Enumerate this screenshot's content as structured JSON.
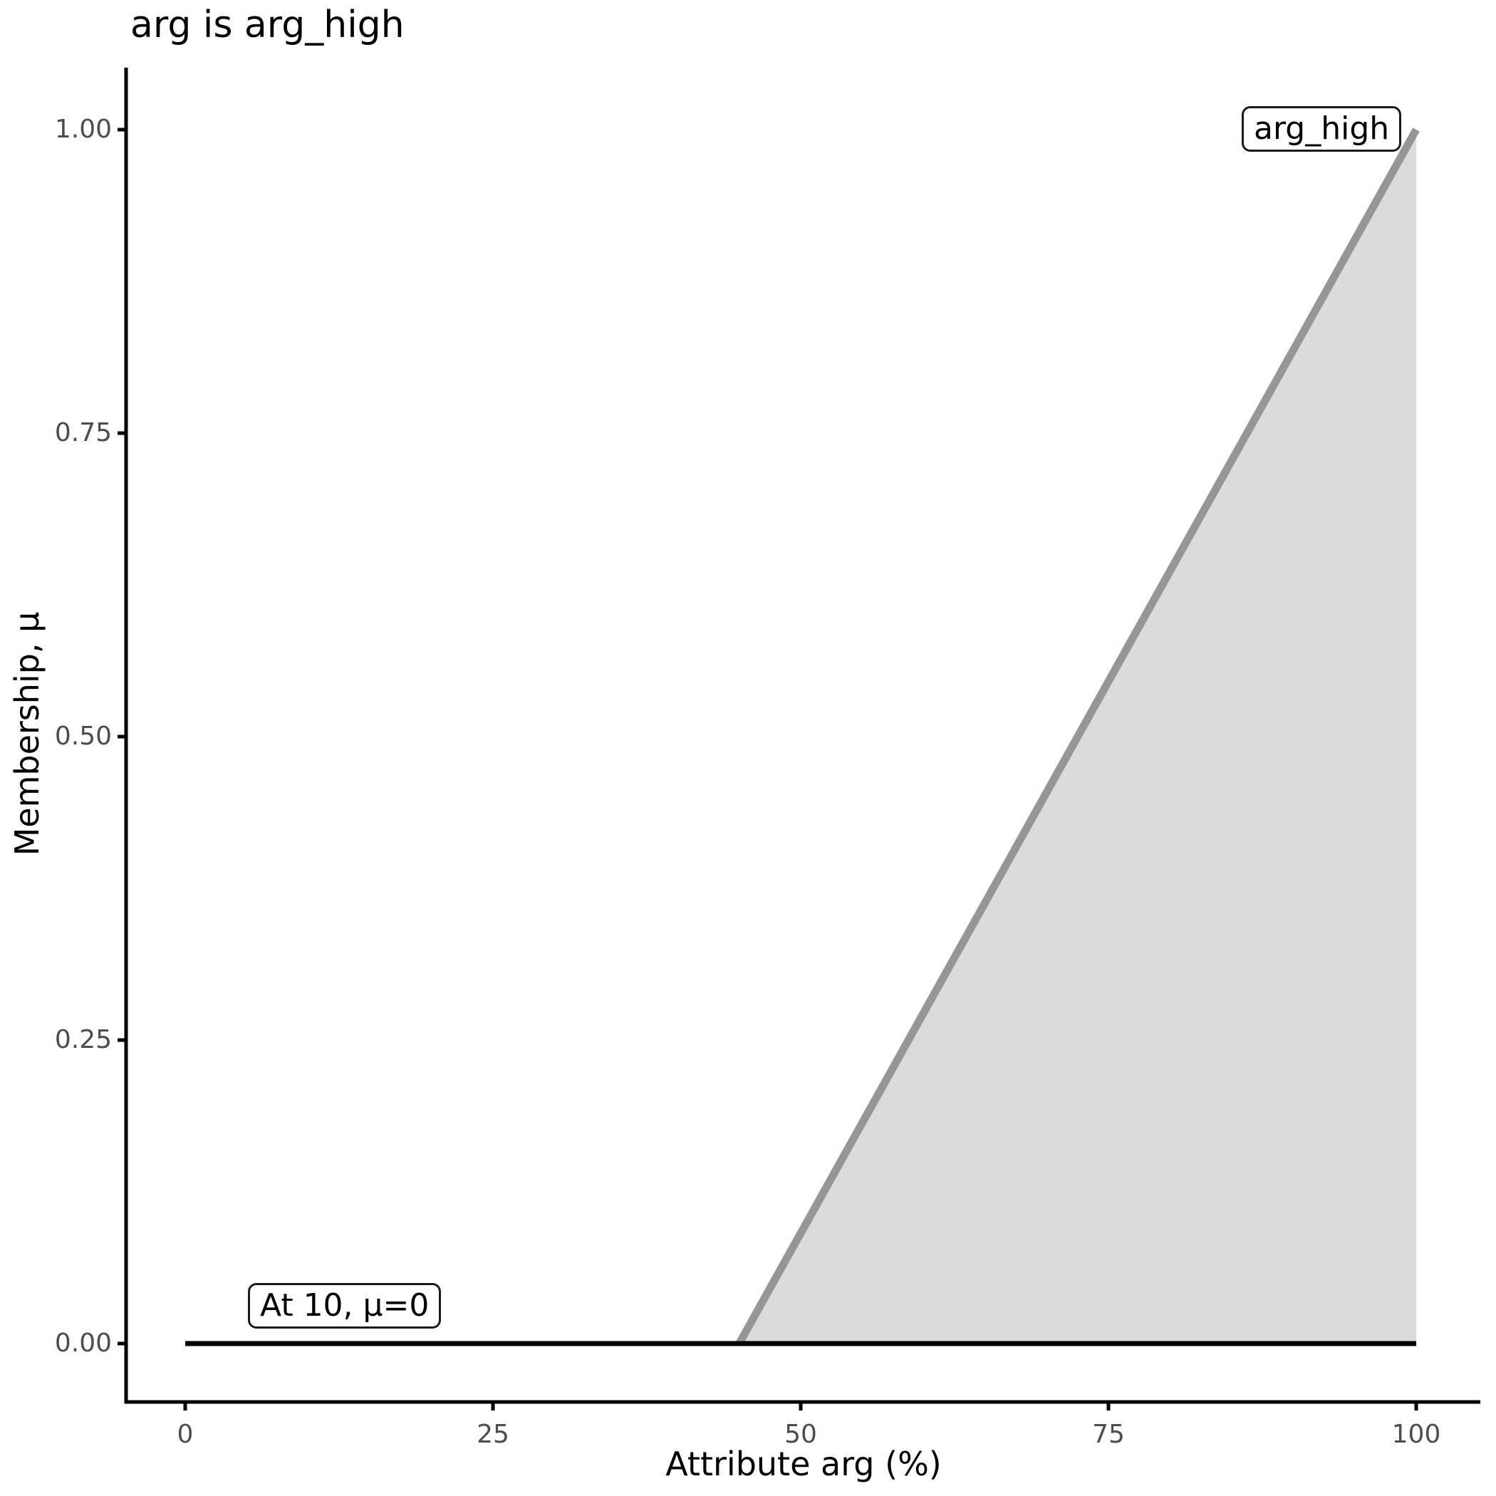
{
  "chart_data": {
    "type": "area",
    "title": "arg is arg_high",
    "xlabel": "Attribute arg (%)",
    "ylabel": "Membership, μ",
    "xlim": [
      0,
      100
    ],
    "ylim": [
      0,
      1
    ],
    "grid": false,
    "legend_position": "none",
    "x_ticks": {
      "values": [
        0,
        25,
        50,
        75,
        100
      ],
      "labels": [
        "0",
        "25",
        "50",
        "75",
        "100"
      ]
    },
    "y_ticks": {
      "values": [
        0,
        0.25,
        0.5,
        0.75,
        1.0
      ],
      "labels": [
        "0.00",
        "0.25",
        "0.50",
        "0.75",
        "1.00"
      ]
    },
    "series": [
      {
        "name": "arg_high",
        "type": "line_with_area_fill",
        "points": [
          [
            45,
            0
          ],
          [
            100,
            1
          ]
        ],
        "fill_baseline": 0,
        "line_color": "#969696",
        "fill_color": "#DBDBDB",
        "line_width": 11
      },
      {
        "name": "membership-at-input",
        "type": "line",
        "points": [
          [
            0,
            0
          ],
          [
            100,
            0
          ]
        ],
        "line_color": "#000000",
        "line_width": 7
      }
    ],
    "annotations": [
      {
        "id": "set-label",
        "text": "arg_high",
        "x": 88,
        "y": 1.0
      },
      {
        "id": "evaluation-label",
        "text": "At 10, μ=0",
        "x": 13,
        "y": 0.05
      }
    ]
  },
  "colors": {
    "background": "#FFFFFF",
    "axis": "#000000",
    "tick_label": "#4D4D4D",
    "title": "#000000",
    "axis_title": "#000000",
    "annotation_border": "#1A1A1A",
    "annotation_text": "#000000",
    "annotation_background": "#FFFFFF"
  }
}
